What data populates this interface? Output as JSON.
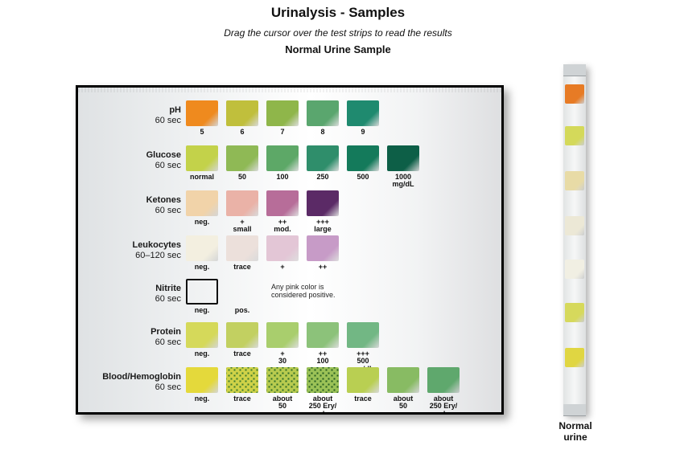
{
  "header": {
    "title": "Urinalysis - Samples",
    "instruction": "Drag the cursor over the test strips to read the results",
    "subtitle": "Normal Urine Sample"
  },
  "chart": {
    "row_top_offsets": [
      16,
      72,
      128,
      184,
      238,
      292,
      348
    ],
    "rows": [
      {
        "label": "pH",
        "sub": "60 sec",
        "cells": [
          {
            "color": "#ef8a1e",
            "label": "5"
          },
          {
            "color": "#c0bf3c",
            "label": "6"
          },
          {
            "color": "#8fb64a",
            "label": "7"
          },
          {
            "color": "#5aa66e",
            "label": "8"
          },
          {
            "color": "#1f8a6f",
            "label": "9"
          }
        ]
      },
      {
        "label": "Glucose",
        "sub": "60 sec",
        "cells": [
          {
            "color": "#c3d24a",
            "label": "normal"
          },
          {
            "color": "#8fb955",
            "label": "50"
          },
          {
            "color": "#5da867",
            "label": "100"
          },
          {
            "color": "#2f8e6b",
            "label": "250"
          },
          {
            "color": "#147a5b",
            "label": "500"
          },
          {
            "color": "#0d5f47",
            "label": "1000 mg/dL"
          }
        ]
      },
      {
        "label": "Ketones",
        "sub": "60 sec",
        "cells": [
          {
            "color": "#f1d3a9",
            "label": "neg."
          },
          {
            "color": "#eab2a7",
            "label": "+\nsmall"
          },
          {
            "color": "#b76d99",
            "label": "++\nmod."
          },
          {
            "color": "#5b2a66",
            "label": "+++\nlarge"
          }
        ]
      },
      {
        "label": "Leukocytes",
        "sub": "60–120 sec",
        "cells": [
          {
            "color": "#f3efe0",
            "label": "neg."
          },
          {
            "color": "#ece0db",
            "label": "trace"
          },
          {
            "color": "#e3c6d6",
            "label": "+"
          },
          {
            "color": "#c79bc7",
            "label": "++"
          }
        ]
      },
      {
        "label": "Nitrite",
        "sub": "60 sec",
        "note": "Any pink color\nis considered\npositive.",
        "cells": [
          {
            "outline": true,
            "label": "neg."
          },
          {
            "gap": true,
            "label": "pos."
          }
        ]
      },
      {
        "label": "Protein",
        "sub": "60 sec",
        "cells": [
          {
            "color": "#d5d95a",
            "label": "neg."
          },
          {
            "color": "#c2d061",
            "label": "trace"
          },
          {
            "color": "#a9ce6d",
            "label": "+\n30"
          },
          {
            "color": "#8cc27a",
            "label": "++\n100"
          },
          {
            "color": "#72b784",
            "label": "+++\n500 mg/dL"
          }
        ]
      },
      {
        "label": "Blood/Hemoglobin",
        "sub": "60 sec",
        "cells": [
          {
            "color": "#e4d93b",
            "label": "neg."
          },
          {
            "color": "#cfd248",
            "speckle": "#3b7a2e",
            "label": "trace"
          },
          {
            "color": "#b8cb4f",
            "speckle": "#2f6e28",
            "label": "about\n50"
          },
          {
            "color": "#9bc257",
            "speckle": "#265e22",
            "label": "about\n250 Ery/µL"
          },
          {
            "color": "#b9cf52",
            "label": "trace"
          },
          {
            "color": "#88bb63",
            "label": "about\n50"
          },
          {
            "color": "#5fa86d",
            "label": "about\n250 Ery/µL"
          }
        ]
      }
    ]
  },
  "strip": {
    "pad_tops": [
      10,
      62,
      118,
      174,
      228,
      282,
      338
    ],
    "pads": [
      {
        "color": "#e77b25"
      },
      {
        "color": "#d4d95a"
      },
      {
        "color": "#e8dba6"
      },
      {
        "color": "#ece8d6"
      },
      {
        "color": "#f1efe3"
      },
      {
        "color": "#d6d95c"
      },
      {
        "color": "#e0d642"
      }
    ],
    "label": "Normal\nurine"
  }
}
